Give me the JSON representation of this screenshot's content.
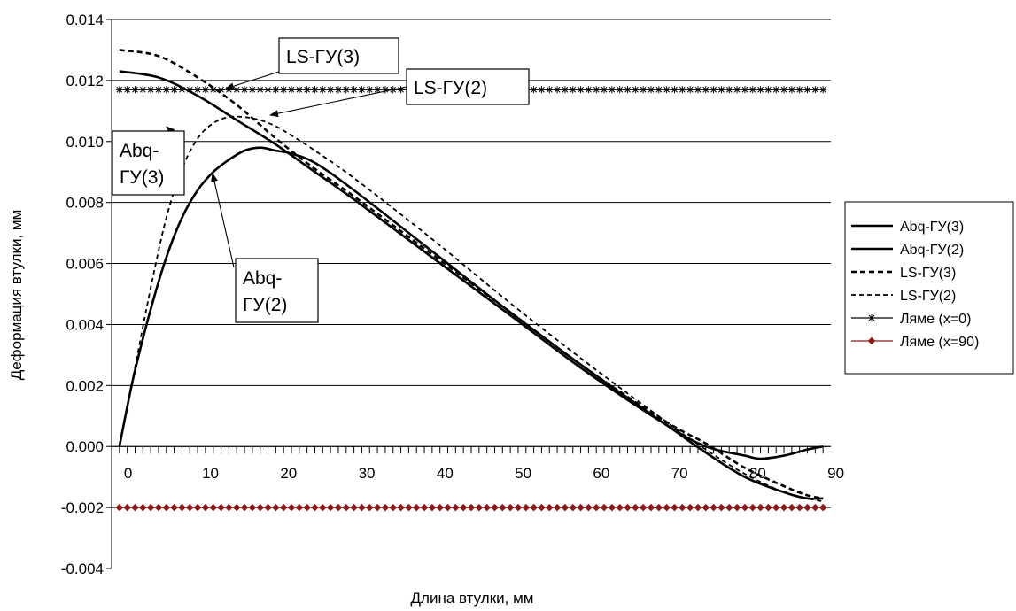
{
  "chart_data": {
    "type": "line",
    "title": "",
    "xlabel": "Длина втулки, мм",
    "ylabel": "Деформация втулки, мм",
    "xlim": [
      -1,
      91
    ],
    "ylim": [
      -0.004,
      0.014
    ],
    "x_ticks": [
      0,
      10,
      20,
      30,
      40,
      50,
      60,
      70,
      80,
      90
    ],
    "y_ticks": [
      -0.004,
      -0.002,
      0.0,
      0.002,
      0.004,
      0.006,
      0.008,
      0.01,
      0.012,
      0.014
    ],
    "y_tick_labels": [
      "-0.004",
      "-0.002",
      "0.000",
      "0.002",
      "0.004",
      "0.006",
      "0.008",
      "0.010",
      "0.012",
      "0.014"
    ],
    "x_tick_labels": [
      "0",
      "10",
      "20",
      "30",
      "40",
      "50",
      "60",
      "70",
      "80",
      "90"
    ],
    "grid": "horizontal",
    "legend_position": "right",
    "series": [
      {
        "name": "Abq-ГУ(3)",
        "style": "solid",
        "color": "#000000",
        "x": [
          0,
          5,
          10,
          15,
          20,
          25,
          30,
          40,
          50,
          60,
          70,
          75,
          80,
          82,
          85,
          88,
          90
        ],
        "y": [
          0.0123,
          0.0121,
          0.0115,
          0.0107,
          0.0099,
          0.009,
          0.0081,
          0.0062,
          0.0043,
          0.0024,
          0.0007,
          0.0,
          -0.0003,
          -0.0004,
          -0.0003,
          -0.0001,
          0.0
        ]
      },
      {
        "name": "Abq-ГУ(2)",
        "style": "solid",
        "color": "#000000",
        "x": [
          0,
          1,
          2,
          4,
          6,
          8,
          10,
          12,
          14,
          16,
          18,
          20,
          22,
          25,
          30,
          40,
          50,
          60,
          70,
          75,
          80,
          85,
          88,
          90
        ],
        "y": [
          0.0,
          0.0013,
          0.0025,
          0.0045,
          0.0062,
          0.0075,
          0.0084,
          0.009,
          0.0094,
          0.0097,
          0.0098,
          0.0097,
          0.0096,
          0.0093,
          0.0084,
          0.0064,
          0.0044,
          0.0025,
          0.0007,
          -0.0002,
          -0.001,
          -0.0015,
          -0.0017,
          -0.0017
        ]
      },
      {
        "name": "LS-ГУ(3)",
        "style": "bold-dash",
        "color": "#000000",
        "x": [
          0,
          5,
          10,
          15,
          20,
          25,
          30,
          40,
          50,
          60,
          70,
          75,
          80,
          85,
          88,
          90
        ],
        "y": [
          0.013,
          0.0128,
          0.0121,
          0.0112,
          0.0101,
          0.0091,
          0.0082,
          0.0063,
          0.0044,
          0.0025,
          0.0008,
          0.0001,
          -0.0007,
          -0.0013,
          -0.0016,
          -0.0017
        ]
      },
      {
        "name": "LS-ГУ(2)",
        "style": "dash",
        "color": "#000000",
        "x": [
          0,
          1,
          2,
          4,
          6,
          8,
          10,
          12,
          14,
          16,
          18,
          20,
          22,
          25,
          30,
          40,
          50,
          60,
          70,
          75,
          80,
          85,
          88,
          90
        ],
        "y": [
          0.0,
          0.0013,
          0.0026,
          0.0052,
          0.0075,
          0.0091,
          0.0101,
          0.0106,
          0.0108,
          0.0108,
          0.0107,
          0.0105,
          0.0102,
          0.0097,
          0.0088,
          0.0068,
          0.0047,
          0.0027,
          0.0008,
          -0.0001,
          -0.0009,
          -0.0015,
          -0.0017,
          -0.0018
        ]
      },
      {
        "name": "Ляме (x=0)",
        "style": "asterisk",
        "color": "#000000",
        "constant": 0.0117
      },
      {
        "name": "Ляме (x=90)",
        "style": "diamond",
        "color": "#8b1a1a",
        "constant": -0.002
      }
    ],
    "annotations": [
      {
        "text": "LS-ГУ(3)",
        "lines": [
          "LS-ГУ(3)"
        ],
        "target_x": 15,
        "target_y": 0.0113
      },
      {
        "text": "LS-ГУ(2)",
        "lines": [
          "LS-ГУ(2)"
        ],
        "target_x": 20,
        "target_y": 0.0107
      },
      {
        "text": "Abq-ГУ(3)",
        "lines": [
          "Abq-",
          "ГУ(3)"
        ],
        "target_x": 10,
        "target_y": 0.0115
      },
      {
        "text": "Abq-ГУ(2)",
        "lines": [
          "Abq-",
          "ГУ(2)"
        ],
        "target_x": 12,
        "target_y": 0.009
      }
    ]
  }
}
